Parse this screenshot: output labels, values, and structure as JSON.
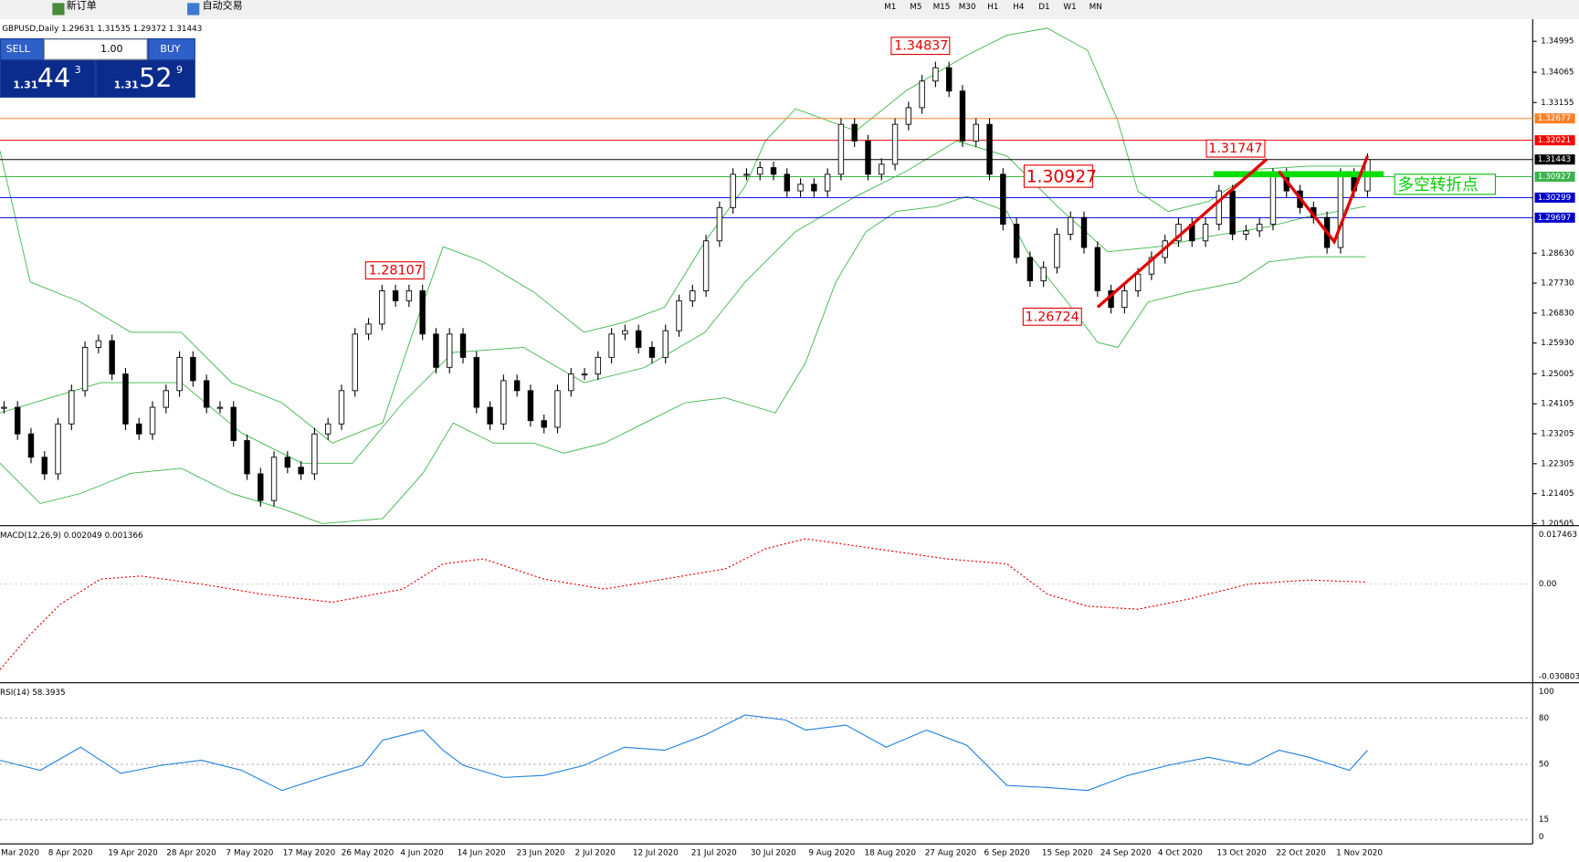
{
  "toolbar": {
    "new_order": "新订单",
    "auto_trading": "自动交易",
    "timeframes": [
      "M1",
      "M5",
      "M15",
      "M30",
      "H1",
      "H4",
      "D1",
      "W1",
      "MN"
    ]
  },
  "chart": {
    "symbol": "GBPUSD,Daily",
    "ohlc": "1.29631 1.31535 1.29372 1.31443"
  },
  "one_click": {
    "sell": "SELL",
    "buy": "BUY",
    "lots": "1.00",
    "sell_price": {
      "big": "1.31",
      "main": "44",
      "frac": "3"
    },
    "buy_price": {
      "big": "1.31",
      "main": "52",
      "frac": "9"
    }
  },
  "price_axis": {
    "range": [
      1.20505,
      1.34995
    ],
    "ticks": [
      {
        "value": 1.34995,
        "label": "1.34995"
      },
      {
        "value": 1.34065,
        "label": "1.34065"
      },
      {
        "value": 1.33155,
        "label": "1.33155"
      },
      {
        "value": 1.2863,
        "label": "1.28630"
      },
      {
        "value": 1.2773,
        "label": "1.27730"
      },
      {
        "value": 1.2683,
        "label": "1.26830"
      },
      {
        "value": 1.2593,
        "label": "1.25930"
      },
      {
        "value": 1.25005,
        "label": "1.25005"
      },
      {
        "value": 1.24105,
        "label": "1.24105"
      },
      {
        "value": 1.23205,
        "label": "1.23205"
      },
      {
        "value": 1.22305,
        "label": "1.22305"
      },
      {
        "value": 1.21405,
        "label": "1.21405"
      },
      {
        "value": 1.20505,
        "label": "1.20505"
      }
    ]
  },
  "levels": [
    {
      "value": 1.32677,
      "label": "1.32677",
      "color": "#ff7f27"
    },
    {
      "value": 1.32021,
      "label": "1.32021",
      "color": "#ff0000"
    },
    {
      "value": 1.31443,
      "label": "1.31443",
      "color": "#000000"
    },
    {
      "value": 1.30927,
      "label": "1.30927",
      "color": "#3cb44b"
    },
    {
      "value": 1.30299,
      "label": "1.30299",
      "color": "#0000cc"
    },
    {
      "value": 1.29697,
      "label": "1.29697",
      "color": "#0000cc"
    }
  ],
  "annotations": {
    "high": "1.34837",
    "peak": "1.31747",
    "pivot_price": "1.30927",
    "left": "1.28107",
    "low": "1.26724",
    "pivot_note": "多空转折点"
  },
  "price_path": {
    "closes": [
      1.24,
      1.232,
      1.225,
      1.22,
      1.235,
      1.245,
      1.258,
      1.26,
      1.25,
      1.235,
      1.232,
      1.24,
      1.245,
      1.255,
      1.248,
      1.24,
      1.24,
      1.23,
      1.22,
      1.212,
      1.225,
      1.222,
      1.22,
      1.232,
      1.235,
      1.245,
      1.262,
      1.265,
      1.275,
      1.272,
      1.275,
      1.262,
      1.252,
      1.262,
      1.255,
      1.24,
      1.235,
      1.248,
      1.245,
      1.236,
      1.234,
      1.245,
      1.25,
      1.25,
      1.255,
      1.262,
      1.263,
      1.258,
      1.255,
      1.263,
      1.272,
      1.275,
      1.29,
      1.3,
      1.31,
      1.31,
      1.312,
      1.31,
      1.305,
      1.307,
      1.305,
      1.31,
      1.325,
      1.32,
      1.31,
      1.313,
      1.325,
      1.33,
      1.338,
      1.342,
      1.335,
      1.32,
      1.325,
      1.31,
      1.295,
      1.285,
      1.278,
      1.282,
      1.292,
      1.297,
      1.288,
      1.275,
      1.27,
      1.275,
      1.28,
      1.285,
      1.29,
      1.295,
      1.29,
      1.295,
      1.305,
      1.292,
      1.293,
      1.295,
      1.31,
      1.305,
      1.3,
      1.297,
      1.288,
      1.31,
      1.305,
      1.31443
    ]
  },
  "time_axis": [
    "Mar 2020",
    "8 Apr 2020",
    "19 Apr 2020",
    "28 Apr 2020",
    "7 May 2020",
    "17 May 2020",
    "26 May 2020",
    "4 Jun 2020",
    "14 Jun 2020",
    "23 Jun 2020",
    "2 Jul 2020",
    "12 Jul 2020",
    "21 Jul 2020",
    "30 Jul 2020",
    "9 Aug 2020",
    "18 Aug 2020",
    "27 Aug 2020",
    "6 Sep 2020",
    "15 Sep 2020",
    "24 Sep 2020",
    "4 Oct 2020",
    "13 Oct 2020",
    "22 Oct 2020",
    "1 Nov 2020"
  ],
  "macd": {
    "label": "MACD(12,26,9) 0.002049 0.001366",
    "ticks": [
      "0.017463",
      "0.00",
      "-0.030803"
    ]
  },
  "rsi": {
    "label": "RSI(14) 58.3935",
    "ticks": [
      "100",
      "80",
      "50",
      "15",
      "0"
    ]
  }
}
